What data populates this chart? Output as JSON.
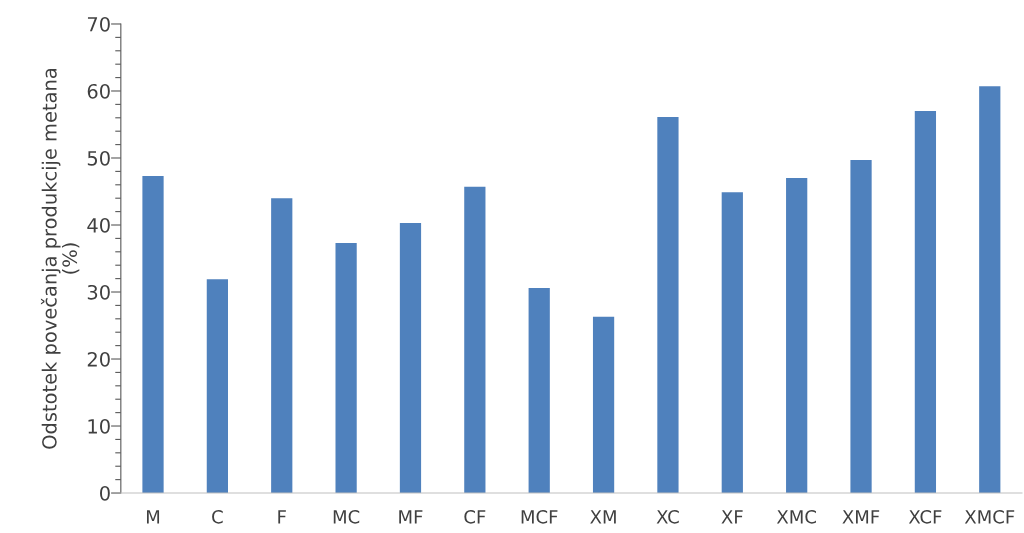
{
  "chart_data": {
    "type": "bar",
    "ylabel": "Odstotek povečanja produkcije metana\n(%)",
    "categories": [
      "M",
      "C",
      "F",
      "MC",
      "MF",
      "CF",
      "MCF",
      "XM",
      "XC",
      "XF",
      "XMC",
      "XMF",
      "XCF",
      "XMCF"
    ],
    "values": [
      47.3,
      31.9,
      44.0,
      37.3,
      40.3,
      45.7,
      30.6,
      26.3,
      56.1,
      44.9,
      47.0,
      49.7,
      57.0,
      60.7
    ],
    "color": "#4f81bd",
    "ylim": [
      0,
      70
    ],
    "yticks": [
      0,
      {
        "value": 2,
        "label": null
      },
      {
        "value": 4,
        "label": null
      },
      {
        "value": 6,
        "label": null
      },
      {
        "value": 8,
        "label": null
      },
      10,
      {
        "value": 12,
        "label": null
      },
      {
        "value": 14,
        "label": null
      },
      {
        "value": 16,
        "label": null
      },
      {
        "value": 18,
        "label": null
      },
      20,
      {
        "value": 22,
        "label": null
      },
      {
        "value": 24,
        "label": null
      },
      {
        "value": 26,
        "label": null
      },
      {
        "value": 28,
        "label": null
      },
      30,
      {
        "value": 32,
        "label": null
      },
      {
        "value": 34,
        "label": null
      },
      {
        "value": 36,
        "label": null
      },
      {
        "value": 38,
        "label": null
      },
      40,
      {
        "value": 42,
        "label": null
      },
      {
        "value": 44,
        "label": null
      },
      {
        "value": 46,
        "label": null
      },
      {
        "value": 48,
        "label": null
      },
      50,
      {
        "value": 52,
        "label": null
      },
      {
        "value": 54,
        "label": null
      },
      {
        "value": 56,
        "label": null
      },
      {
        "value": 58,
        "label": null
      },
      60,
      {
        "value": 62,
        "label": null
      },
      {
        "value": 64,
        "label": null
      },
      {
        "value": 66,
        "label": null
      },
      {
        "value": 68,
        "label": null
      },
      70
    ],
    "grid": false
  }
}
